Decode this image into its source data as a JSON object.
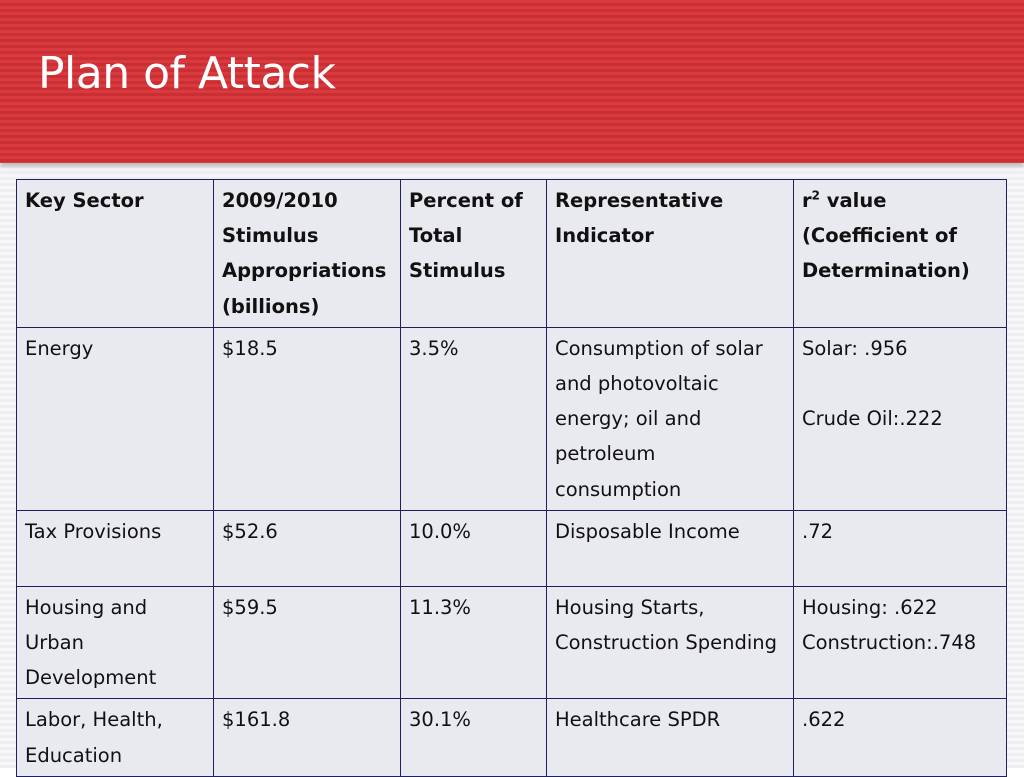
{
  "slide": {
    "title": "Plan of Attack"
  },
  "table": {
    "headers": {
      "sector": "Key Sector",
      "appropriations": "2009/2010 Stimulus Appropriations (billions)",
      "percent": "Percent of Total Stimulus",
      "indicator": "Representative Indicator",
      "r2_base": "r",
      "r2_exp": "2",
      "r2_rest": " value (Coefficient of Determination)"
    },
    "rows": [
      {
        "sector": "Energy",
        "appropriations": "$18.5",
        "percent": "3.5%",
        "indicator": "Consumption of solar and photovoltaic energy; oil and petroleum consumption",
        "r2_lines": [
          "Solar: .956",
          "Crude Oil:.222"
        ]
      },
      {
        "sector": "Tax Provisions",
        "appropriations": "$52.6",
        "percent": "10.0%",
        "indicator": "Disposable Income",
        "r2": ".72"
      },
      {
        "sector": "Housing and Urban Development",
        "appropriations": "$59.5",
        "percent": "11.3%",
        "indicator": "Housing Starts, Construction Spending",
        "r2_lines": [
          "Housing: .622",
          "Construction:.748"
        ]
      },
      {
        "sector": "Labor, Health, Education",
        "appropriations": "$161.8",
        "percent": "30.1%",
        "indicator": "Healthcare SPDR",
        "r2": ".622"
      }
    ]
  },
  "colors": {
    "title_band": "#d83a3e",
    "table_fill": "#e9e9f0",
    "table_border": "#202060"
  }
}
